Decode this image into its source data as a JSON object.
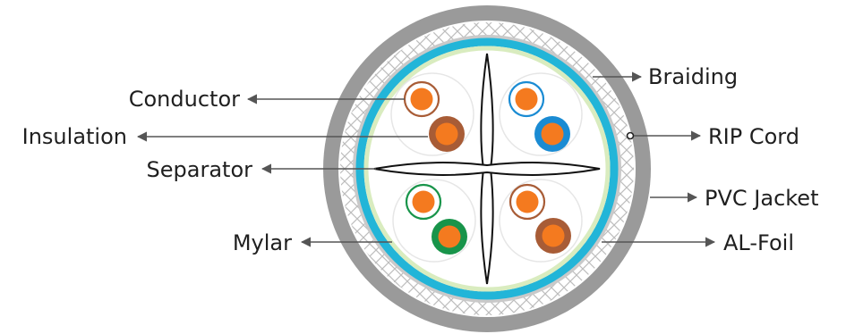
{
  "labels": {
    "conductor": "Conductor",
    "insulation": "Insulation",
    "separator": "Separator",
    "mylar": "Mylar",
    "braiding": "Braiding",
    "rip_cord": "RIP Cord",
    "pvc_jacket": "PVC Jacket",
    "al_foil": "AL-Foil"
  },
  "colors": {
    "jacket": "#9a9a9a",
    "braid": "#c4c4c4",
    "foil": "#22b5d8",
    "mylar": "#d9ecbf",
    "copper": "#f47a1f",
    "brown": "#a85c36",
    "blue": "#1a8bd3",
    "green": "#18944a",
    "leader": "#555555"
  },
  "pairs": [
    {
      "name": "brown-pair",
      "stripe": "brown",
      "solid": "brown"
    },
    {
      "name": "blue-pair",
      "stripe": "blue",
      "solid": "blue"
    },
    {
      "name": "green-pair",
      "stripe": "green",
      "solid": "green"
    },
    {
      "name": "orange-pair",
      "stripe": "brown",
      "solid": "brown"
    }
  ]
}
